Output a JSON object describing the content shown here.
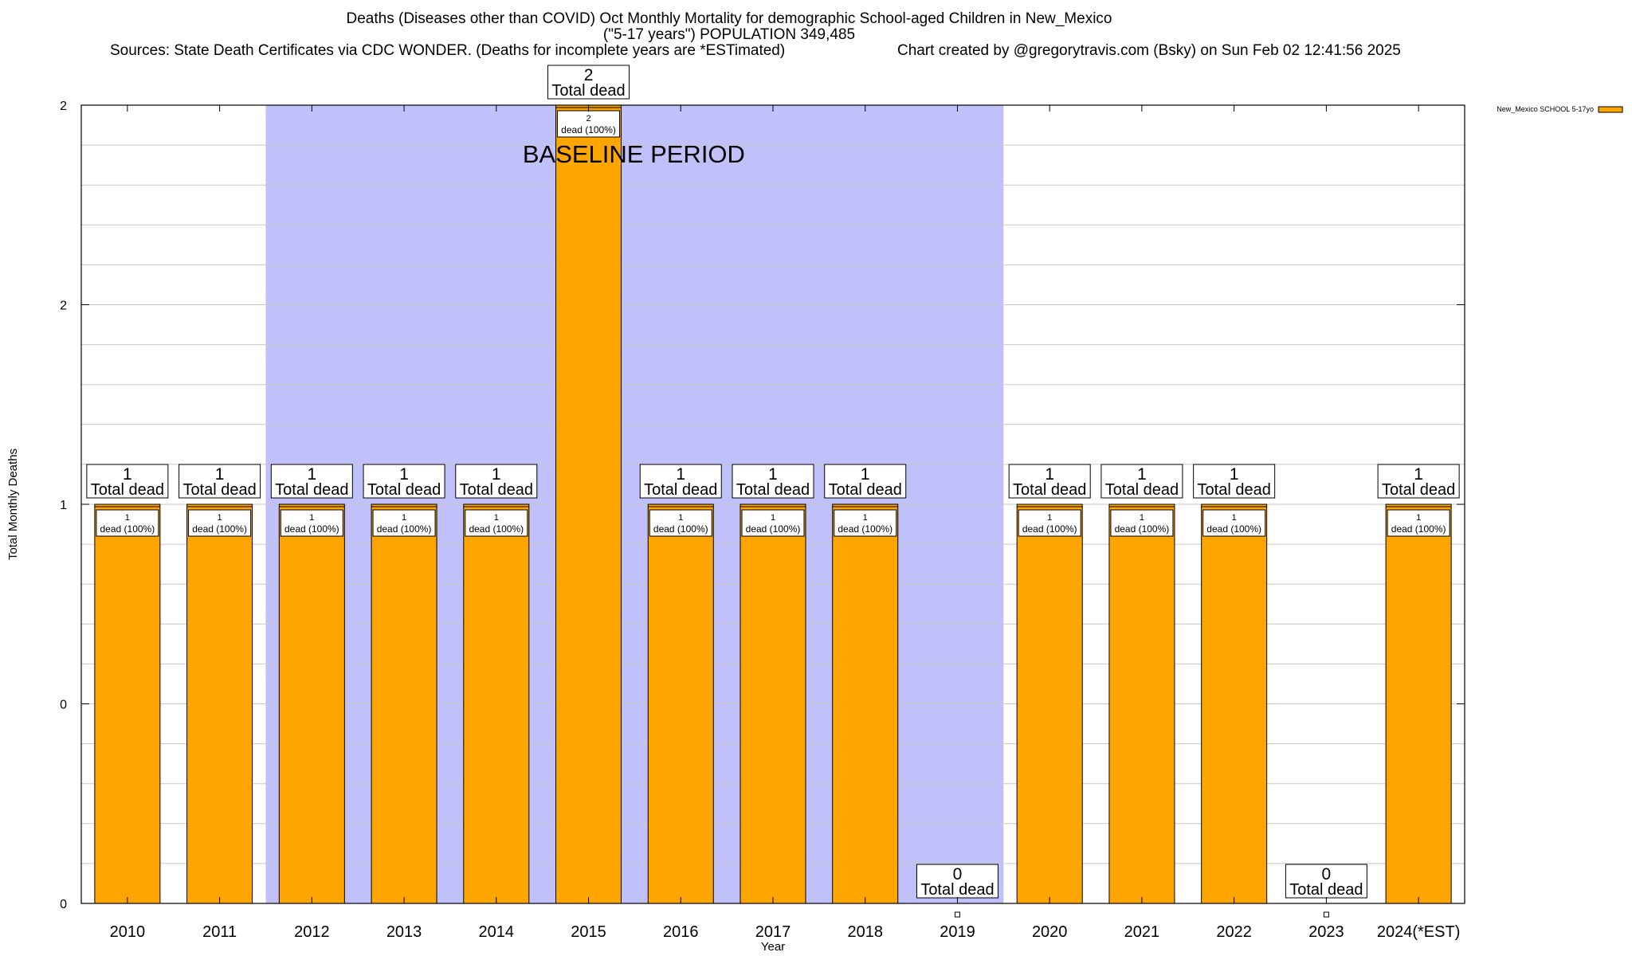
{
  "header": {
    "title_line1": "Deaths (Diseases other than COVID) Oct Monthly Mortality for demographic School-aged Children in New_Mexico",
    "title_line2": "(\"5-17 years\") POPULATION 349,485",
    "sources": "Sources: State Death Certificates via CDC WONDER. (Deaths for incomplete years are *ESTimated)",
    "credit": "Chart created by @gregorytravis.com (Bsky) on Sun Feb 02 12:41:56 2025"
  },
  "chart_data": {
    "type": "bar",
    "categories": [
      "2010",
      "2011",
      "2012",
      "2013",
      "2014",
      "2015",
      "2016",
      "2017",
      "2018",
      "2019",
      "2020",
      "2021",
      "2022",
      "2023",
      "2024(*EST)"
    ],
    "series": [
      {
        "name": "New_Mexico SCHOOL 5-17yo",
        "values": [
          1,
          1,
          1,
          1,
          1,
          2,
          1,
          1,
          1,
          0,
          1,
          1,
          1,
          0,
          1
        ]
      }
    ],
    "bar_labels": [
      "1\ndead (100%)",
      "1\ndead (100%)",
      "1\ndead (100%)",
      "1\ndead (100%)",
      "1\ndead (100%)",
      "2\ndead (100%)",
      "1\ndead (100%)",
      "1\ndead (100%)",
      "1\ndead (100%)",
      "",
      "1\ndead (100%)",
      "1\ndead (100%)",
      "1\ndead (100%)",
      "",
      "1\ndead (100%)"
    ],
    "total_labels": [
      "1\nTotal dead",
      "1\nTotal dead",
      "1\nTotal dead",
      "1\nTotal dead",
      "1\nTotal dead",
      "2\nTotal dead",
      "1\nTotal dead",
      "1\nTotal dead",
      "1\nTotal dead",
      "0\nTotal dead",
      "1\nTotal dead",
      "1\nTotal dead",
      "1\nTotal dead",
      "0\nTotal dead",
      "1\nTotal dead"
    ],
    "xlabel": "Year",
    "ylabel": "Total Monthly Deaths",
    "yticks": [
      "0",
      "0",
      "1",
      "2",
      "2"
    ],
    "ylim": [
      0,
      2
    ],
    "baseline": {
      "label": "BASELINE PERIOD",
      "from": "2012",
      "to": "2019"
    },
    "grid": true,
    "legend_position": "top-right",
    "colors": {
      "bar": "#ffa500",
      "baseline": "#c0c0fa",
      "grid": "#c8c8c8"
    }
  }
}
